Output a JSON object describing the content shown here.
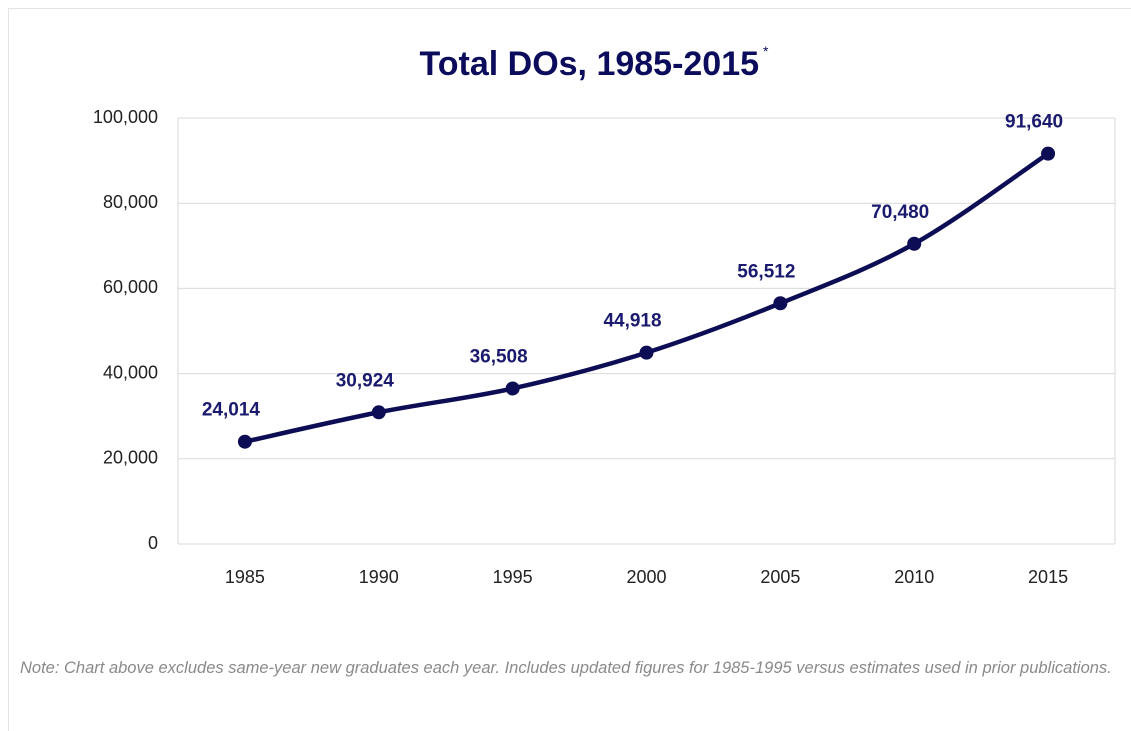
{
  "chart_data": {
    "type": "line",
    "title": "Total DOs, 1985-2015",
    "title_marker": "*",
    "categories": [
      "1985",
      "1990",
      "1995",
      "2000",
      "2005",
      "2010",
      "2015"
    ],
    "values": [
      24014,
      30924,
      36508,
      44918,
      56512,
      70480,
      91640
    ],
    "value_labels": [
      "24,014",
      "30,924",
      "36,508",
      "44,918",
      "56,512",
      "70,480",
      "91,640"
    ],
    "color": "#0d0d55",
    "ylim": [
      0,
      100000
    ],
    "yticks": [
      0,
      {
        "value": 20000,
        "label": "20,000"
      },
      {
        "value": 40000,
        "label": "40,000"
      },
      {
        "value": 60000,
        "label": "60,000"
      },
      {
        "value": 80000,
        "label": "80,000"
      },
      {
        "value": 100000,
        "label": "100,000"
      }
    ],
    "grid": true,
    "note": "Note: Chart above excludes same-year new graduates each year. Includes updated figures for 1985-1995 versus estimates used in prior publications."
  }
}
